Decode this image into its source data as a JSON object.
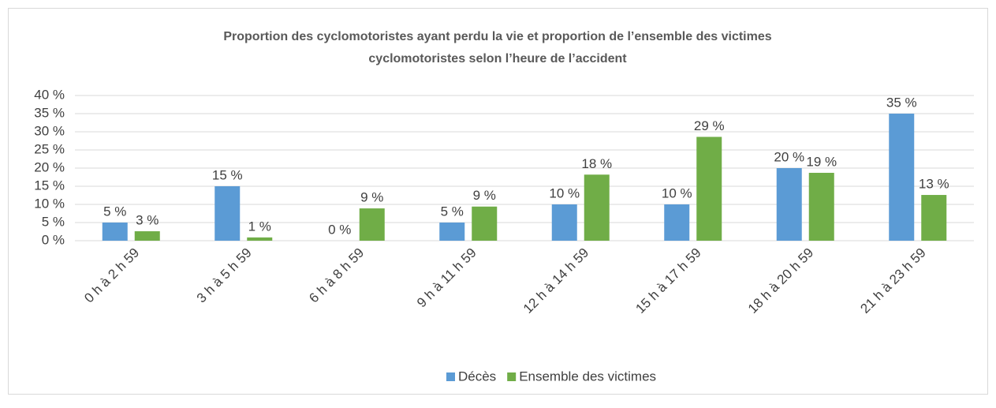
{
  "chart_data": {
    "type": "bar",
    "title": [
      "Proportion des cyclomotoristes ayant perdu la vie et proportion de l’ensemble des victimes",
      "cyclomotoristes selon l’heure de l’accident"
    ],
    "categories": [
      "0 h à 2 h 59",
      "3 h à 5 h 59",
      "6 h à 8 h 59",
      "9 h à 11 h 59",
      "12 h à 14 h 59",
      "15 h à 17 h 59",
      "18 h à 20 h 59",
      "21 h à 23 h 59"
    ],
    "series": [
      {
        "name": "Décès",
        "color": "#5b9bd5",
        "values": [
          5,
          15,
          0,
          5,
          10,
          10,
          20,
          35
        ],
        "value_labels": [
          "5 %",
          "15 %",
          "0 %",
          "5 %",
          "10 %",
          "10 %",
          "20 %",
          "35 %"
        ]
      },
      {
        "name": "Ensemble des victimes",
        "color": "#70ad47",
        "values": [
          2.6,
          0.9,
          8.9,
          9.4,
          18.2,
          28.6,
          18.7,
          12.6
        ],
        "value_labels": [
          "3 %",
          "1 %",
          "9 %",
          "9 %",
          "18 %",
          "29 %",
          "19 %",
          "13 %"
        ]
      }
    ],
    "ylim": [
      0,
      40
    ],
    "yticks": [
      {
        "value": 0,
        "label": "0 %"
      },
      {
        "value": 5,
        "label": "5 %"
      },
      {
        "value": 10,
        "label": "10 %"
      },
      {
        "value": 15,
        "label": "15 %"
      },
      {
        "value": 20,
        "label": "20 %"
      },
      {
        "value": 25,
        "label": "25 %"
      },
      {
        "value": 30,
        "label": "30 %"
      },
      {
        "value": 35,
        "label": "35 %"
      },
      {
        "value": 40,
        "label": "40 %"
      }
    ],
    "grid": true,
    "legend": "bottom"
  }
}
